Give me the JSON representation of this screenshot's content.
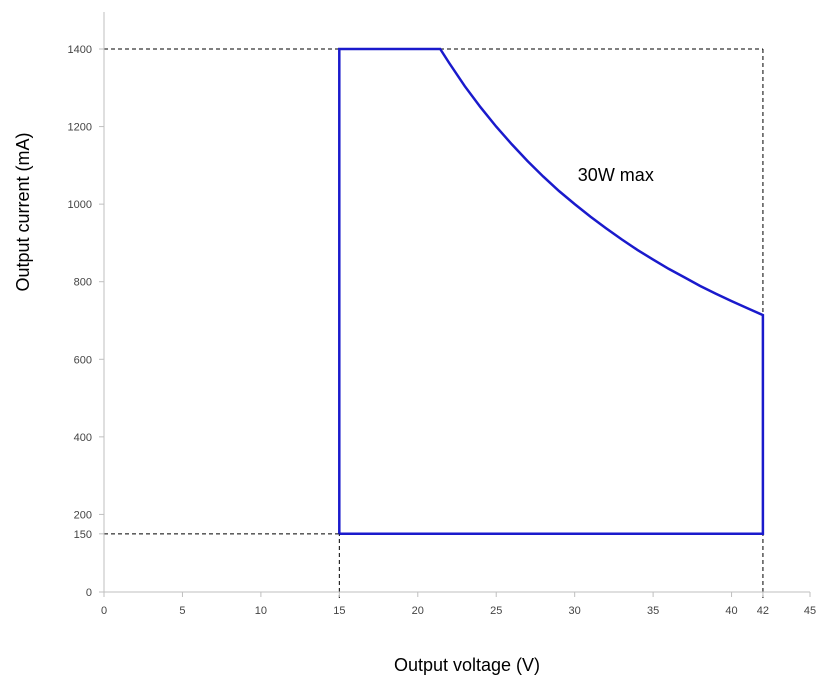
{
  "chart_data": {
    "type": "line",
    "title": "",
    "xlabel": "Output voltage (V)",
    "ylabel": "Output current (mA)",
    "xlim": [
      0,
      45
    ],
    "ylim": [
      0,
      1500
    ],
    "x_ticks": [
      {
        "value": 0,
        "label": "0"
      },
      {
        "value": 5,
        "label": "5"
      },
      {
        "value": 10,
        "label": "10"
      },
      {
        "value": 15,
        "label": "15"
      },
      {
        "value": 20,
        "label": "20"
      },
      {
        "value": 25,
        "label": "25"
      },
      {
        "value": 30,
        "label": "30"
      },
      {
        "value": 35,
        "label": "35"
      },
      {
        "value": 40,
        "label": "40"
      },
      {
        "value": 42,
        "label": "42"
      },
      {
        "value": 45,
        "label": "45"
      }
    ],
    "y_ticks": [
      {
        "value": 0,
        "label": "0"
      },
      {
        "value": 150,
        "label": "150"
      },
      {
        "value": 200,
        "label": "200"
      },
      {
        "value": 400,
        "label": "400"
      },
      {
        "value": 600,
        "label": "600"
      },
      {
        "value": 800,
        "label": "800"
      },
      {
        "value": 1000,
        "label": "1000"
      },
      {
        "value": 1200,
        "label": "1200"
      },
      {
        "value": 1400,
        "label": "1400"
      }
    ],
    "grid": false,
    "reference_lines": [
      {
        "orientation": "horizontal",
        "value": 1400,
        "style": "dashed"
      },
      {
        "orientation": "horizontal",
        "value": 150,
        "style": "dashed"
      },
      {
        "orientation": "vertical",
        "value": 15,
        "style": "dashed"
      },
      {
        "orientation": "vertical",
        "value": 42,
        "style": "dashed"
      }
    ],
    "series": [
      {
        "color": "#1a1acc",
        "points": [
          {
            "x": 15,
            "y": 150
          },
          {
            "x": 15,
            "y": 1400
          },
          {
            "x": 21.43,
            "y": 1400
          },
          {
            "x": 22,
            "y": 1364
          },
          {
            "x": 23,
            "y": 1304
          },
          {
            "x": 24,
            "y": 1250
          },
          {
            "x": 25,
            "y": 1200
          },
          {
            "x": 26,
            "y": 1154
          },
          {
            "x": 27,
            "y": 1111
          },
          {
            "x": 28,
            "y": 1071
          },
          {
            "x": 29,
            "y": 1034
          },
          {
            "x": 30,
            "y": 1000
          },
          {
            "x": 31,
            "y": 968
          },
          {
            "x": 32,
            "y": 938
          },
          {
            "x": 33,
            "y": 909
          },
          {
            "x": 34,
            "y": 882
          },
          {
            "x": 35,
            "y": 857
          },
          {
            "x": 36,
            "y": 833
          },
          {
            "x": 37,
            "y": 811
          },
          {
            "x": 38,
            "y": 789
          },
          {
            "x": 39,
            "y": 769
          },
          {
            "x": 40,
            "y": 750
          },
          {
            "x": 41,
            "y": 732
          },
          {
            "x": 42,
            "y": 714
          },
          {
            "x": 42,
            "y": 150
          },
          {
            "x": 15,
            "y": 150
          }
        ]
      }
    ],
    "annotations": [
      {
        "text": "30W max",
        "x": 30.2,
        "y": 1060
      }
    ]
  }
}
